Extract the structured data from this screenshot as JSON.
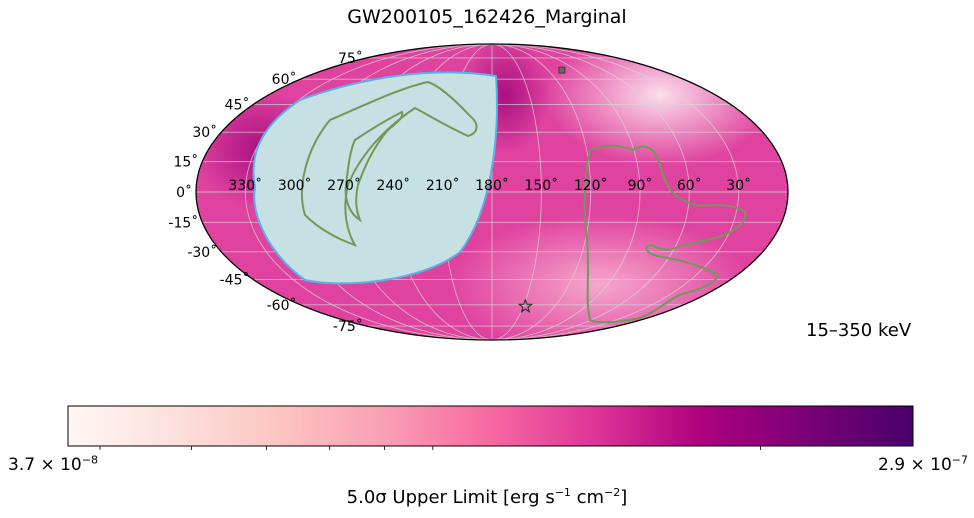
{
  "chart_data": {
    "type": "heatmap",
    "projection": "mollweide",
    "title": "GW200105_162426_Marginal",
    "energy_band": "15–350 keV",
    "ra_tick_labels": [
      "330˚",
      "300˚",
      "270˚",
      "240˚",
      "210˚",
      "180˚",
      "150˚",
      "120˚",
      "90˚",
      "60˚",
      "30˚"
    ],
    "ra_ticks": [
      330,
      300,
      270,
      240,
      210,
      180,
      150,
      120,
      90,
      60,
      30
    ],
    "dec_tick_labels": [
      "75˚",
      "60˚",
      "45˚",
      "30˚",
      "15˚",
      "0˚",
      "-15˚",
      "-30˚",
      "-45˚",
      "-60˚",
      "-75˚"
    ],
    "dec_ticks": [
      75,
      60,
      45,
      30,
      15,
      0,
      -15,
      -30,
      -45,
      -60,
      -75
    ],
    "grid": true,
    "colorbar": {
      "colormap": "RdPu",
      "min_label": {
        "mantissa": "3.7 × 10",
        "exp": "−8"
      },
      "max_label": {
        "mantissa": "2.9 × 10",
        "exp": "−7"
      },
      "vmin": 3.7e-08,
      "vmax": 2.9e-07,
      "label": {
        "pre": "5.0σ Upper Limit [erg s",
        "e1": "−1",
        "mid": " cm",
        "e2": "−2",
        "post": "]"
      },
      "stops": [
        "#fff7f3",
        "#fde0dd",
        "#fcc5c0",
        "#fa9fb5",
        "#f768a1",
        "#dd3497",
        "#ae017e",
        "#7a0177",
        "#49006a"
      ]
    },
    "sky_background_color": "#e0439f",
    "occulted_region_color": "#c7e0e3",
    "occulted_region_edge_color": "#5ab1e6",
    "contour_color": "#6f9a58",
    "markers": [
      {
        "name": "source-star-marker",
        "shape": "star",
        "ra": 148,
        "dec": -61
      },
      {
        "name": "square-marker",
        "shape": "square",
        "ra": 105,
        "dec": 66
      }
    ]
  }
}
